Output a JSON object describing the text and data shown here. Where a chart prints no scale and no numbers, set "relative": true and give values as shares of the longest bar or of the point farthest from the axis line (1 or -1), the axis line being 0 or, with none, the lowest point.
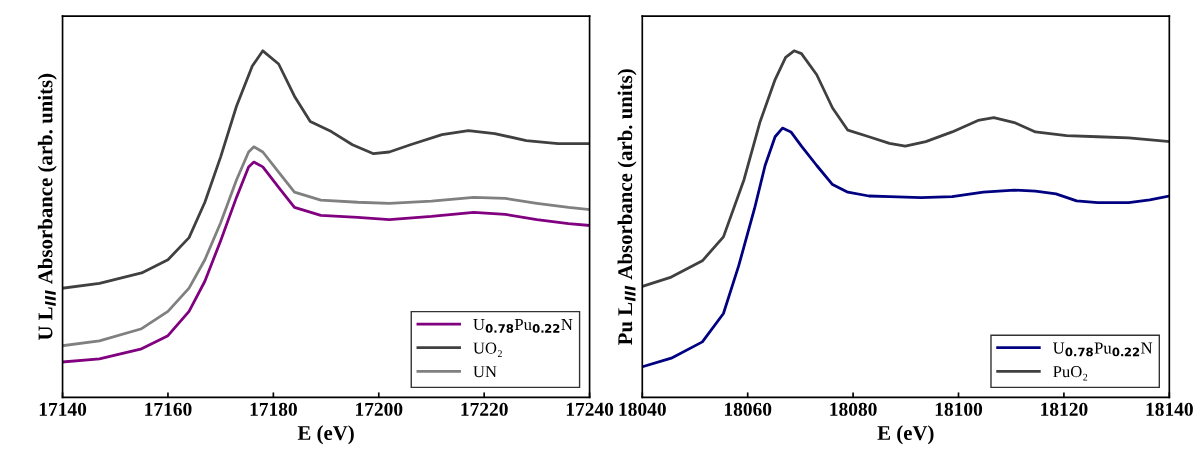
{
  "chart_data": [
    {
      "type": "line",
      "relative": true,
      "xlabel": "E (eV)",
      "ylabel": "U L$_{III}$ Absorbance (arb. units)",
      "xlim": [
        17140,
        17240
      ],
      "xticks": [
        17140,
        17160,
        17180,
        17200,
        17220,
        17240
      ],
      "legend": "bottom right",
      "grid": false,
      "marker": "none",
      "line_style": "solid",
      "series": [
        {
          "name": "U$_{0.78}$Pu$_{0.22}$N",
          "color": "#800080",
          "x": [
            17140,
            17147,
            17155,
            17160,
            17164,
            17167,
            17170,
            17173,
            17175.3,
            17176.3,
            17178,
            17181,
            17184,
            17189,
            17196,
            17202,
            17210,
            17218,
            17224,
            17230,
            17236,
            17240
          ],
          "values": [
            0.102,
            0.111,
            0.14,
            0.178,
            0.248,
            0.335,
            0.452,
            0.577,
            0.665,
            0.679,
            0.665,
            0.606,
            0.548,
            0.525,
            0.519,
            0.513,
            0.522,
            0.534,
            0.528,
            0.513,
            0.501,
            0.496
          ]
        },
        {
          "name": "UO₂",
          "color": "#404040",
          "x": [
            17140,
            17147,
            17155,
            17160,
            17164,
            17167,
            17170,
            17173,
            17176,
            17178,
            17181,
            17184,
            17187,
            17191,
            17195,
            17199,
            17202,
            17206,
            17212,
            17217,
            17222,
            17228,
            17234,
            17240
          ],
          "values": [
            0.315,
            0.329,
            0.359,
            0.397,
            0.461,
            0.563,
            0.694,
            0.84,
            0.956,
            1.0,
            0.962,
            0.869,
            0.796,
            0.767,
            0.729,
            0.703,
            0.708,
            0.729,
            0.758,
            0.77,
            0.761,
            0.741,
            0.732,
            0.732
          ]
        },
        {
          "name": "UN",
          "color": "#808080",
          "x": [
            17140,
            17147,
            17155,
            17160,
            17164,
            17167,
            17170,
            17173,
            17175.3,
            17176.3,
            17178,
            17181,
            17184,
            17189,
            17196,
            17202,
            17210,
            17218,
            17224,
            17230,
            17236,
            17240
          ],
          "values": [
            0.149,
            0.163,
            0.198,
            0.248,
            0.315,
            0.397,
            0.504,
            0.627,
            0.708,
            0.723,
            0.708,
            0.65,
            0.592,
            0.569,
            0.563,
            0.56,
            0.566,
            0.577,
            0.574,
            0.56,
            0.548,
            0.542
          ]
        }
      ]
    },
    {
      "type": "line",
      "relative": true,
      "xlabel": "E (eV)",
      "ylabel": "Pu L$_{III}$ Absorbance (arb. units)",
      "xlim": [
        18040,
        18140
      ],
      "xticks": [
        18040,
        18060,
        18080,
        18100,
        18120,
        18140
      ],
      "legend": "bottom right",
      "grid": false,
      "marker": "none",
      "line_style": "solid",
      "series": [
        {
          "name": "U$_{0.78}$Pu$_{0.22}$N",
          "color": "#000080",
          "x": [
            18040,
            18045.5,
            18051.4,
            18055.4,
            18058.3,
            18061.3,
            18063.3,
            18065.2,
            18066.6,
            18068.2,
            18070.2,
            18073.1,
            18076.1,
            18079,
            18083,
            18086.9,
            18092.9,
            18098.8,
            18104.7,
            18110.6,
            18114.6,
            18118.5,
            18122.4,
            18126.4,
            18132.3,
            18136.3,
            18140
          ],
          "values": [
            0.088,
            0.113,
            0.16,
            0.242,
            0.38,
            0.545,
            0.669,
            0.752,
            0.777,
            0.766,
            0.725,
            0.669,
            0.614,
            0.592,
            0.581,
            0.579,
            0.576,
            0.579,
            0.592,
            0.598,
            0.595,
            0.587,
            0.567,
            0.562,
            0.562,
            0.57,
            0.581
          ]
        },
        {
          "name": "PuO₂",
          "color": "#404040",
          "x": [
            18040,
            18045.5,
            18051.4,
            18055.4,
            18059.3,
            18062.3,
            18065.2,
            18067.2,
            18068.8,
            18070.2,
            18073.1,
            18076.1,
            18079,
            18083,
            18086.9,
            18089.9,
            18093.8,
            18098.8,
            18103.7,
            18106.7,
            18110.6,
            18114.6,
            18120.5,
            18126.4,
            18132.3,
            18140
          ],
          "values": [
            0.32,
            0.347,
            0.394,
            0.463,
            0.628,
            0.793,
            0.917,
            0.981,
            1.0,
            0.992,
            0.931,
            0.835,
            0.771,
            0.752,
            0.733,
            0.725,
            0.738,
            0.766,
            0.799,
            0.807,
            0.793,
            0.766,
            0.755,
            0.752,
            0.749,
            0.738
          ]
        }
      ]
    }
  ]
}
